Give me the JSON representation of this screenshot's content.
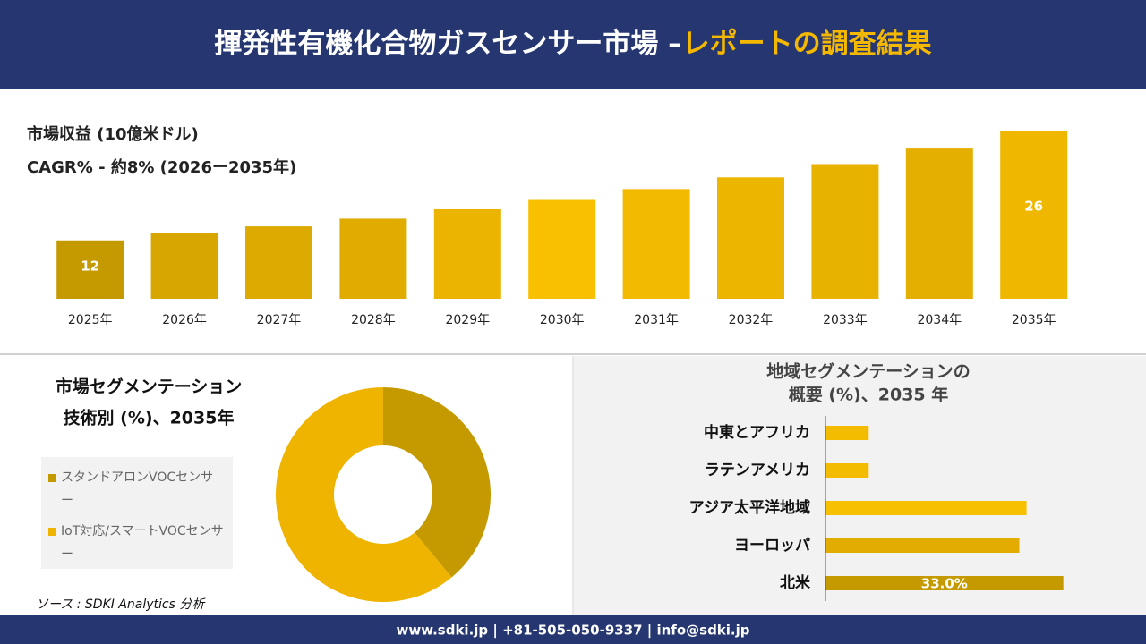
{
  "header": {
    "title": "揮発性有機化合物ガスセンサー市場 –",
    "title_highlight": "レポートの調査結果"
  },
  "chart_data": [
    {
      "type": "bar",
      "title": "市場収益 (10億米ドル)",
      "subtitle": "CAGR% - 約8% (2026ー2035年)",
      "categories": [
        "2025年",
        "2026年",
        "2027年",
        "2028年",
        "2029年",
        "2030年",
        "2031年",
        "2032年",
        "2033年",
        "2034年",
        "2035年"
      ],
      "values": [
        12,
        12.9,
        13.8,
        14.8,
        16.0,
        17.2,
        18.6,
        20.1,
        21.8,
        23.8,
        26
      ],
      "value_labels": [
        "12",
        null,
        null,
        null,
        null,
        null,
        null,
        null,
        null,
        null,
        "26"
      ],
      "colors": [
        "#c49a00",
        "#d8a600",
        "#dcaa00",
        "#e0ac00",
        "#ebb400",
        "#f8c000",
        "#f2ba00",
        "#ecb500",
        "#e8b200",
        "#e4af00",
        "#efb700"
      ],
      "ylim": [
        4.5,
        26.8
      ]
    },
    {
      "type": "donut",
      "title": [
        "市場セグメンテーション",
        "技術別 (%)、2035年"
      ],
      "categories": [
        "スタンドアロンVOCセンサー",
        "IoT対応/スマートVOCセンサー"
      ],
      "values": [
        39,
        61
      ],
      "colors": [
        "#c49a00",
        "#efb400"
      ]
    },
    {
      "type": "hbar",
      "title": [
        "地域セグメンテーションの",
        "概要 (%)、2035 年"
      ],
      "categories": [
        "中東とアフリカ",
        "ラテンアメリカ",
        "アジア太平洋地域",
        "ヨーロッパ",
        "北米"
      ],
      "values": [
        6.0,
        6.0,
        27.9,
        26.9,
        33.0
      ],
      "value_labels": [
        null,
        null,
        null,
        null,
        "33.0%"
      ],
      "colors": [
        "#f4bc00",
        "#f4bc00",
        "#f7c000",
        "#e2ac00",
        "#c49a00"
      ],
      "xlim": [
        0,
        40
      ]
    }
  ],
  "source": "ソース : SDKI Analytics 分析",
  "footer": "www.sdki.jp | +81-505-050-9337 | info@sdki.jp"
}
